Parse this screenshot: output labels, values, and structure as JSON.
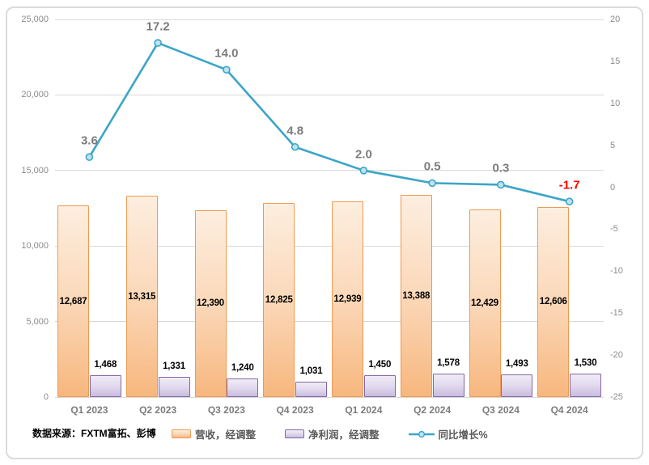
{
  "source_note": "数据来源：FXTM富拓、彭博",
  "colors": {
    "grid": "#D9D9D9",
    "axis_text": "#8C8C8C",
    "category_text": "#7C7C7C",
    "bar_label_text": "#000000",
    "line": "#3BA5C7",
    "line_marker_fill": "#BDE3F0",
    "line_label": "#7C7C7C",
    "line_label_negative": "#FF0000",
    "revenue_border": "#EE9A52",
    "revenue_fill_top": "#FDEEDF",
    "revenue_fill_mid": "#FBD8B9",
    "revenue_fill_bottom": "#F7B77E",
    "profit_border": "#8466A6",
    "profit_fill_top": "#F0ECF6",
    "profit_fill_mid": "#E2D9EE",
    "profit_fill_bottom": "#C9BCDF",
    "frame_border": "#DBDBDB"
  },
  "chart_data": {
    "type": "combo",
    "title": "",
    "categories": [
      "Q1 2023",
      "Q2 2023",
      "Q3 2023",
      "Q4 2023",
      "Q1 2024",
      "Q2 2024",
      "Q3 2024",
      "Q4 2024"
    ],
    "series": [
      {
        "name": "营收，经调整",
        "type": "bar",
        "axis": "left",
        "values": [
          12687,
          13315,
          12390,
          12825,
          12939,
          13388,
          12429,
          12606
        ],
        "labels": [
          "12,687",
          "13,315",
          "12,390",
          "12,825",
          "12,939",
          "13,388",
          "12,429",
          "12,606"
        ],
        "label_position": "center"
      },
      {
        "name": "净利润，经调整",
        "type": "bar",
        "axis": "left",
        "values": [
          1468,
          1331,
          1240,
          1031,
          1450,
          1578,
          1493,
          1530
        ],
        "labels": [
          "1,468",
          "1,331",
          "1,240",
          "1,031",
          "1,450",
          "1,578",
          "1,493",
          "1,530"
        ],
        "label_position": "outside-end"
      },
      {
        "name": "同比增长%",
        "type": "line",
        "axis": "right",
        "values": [
          3.6,
          17.2,
          14.0,
          4.8,
          2.0,
          0.5,
          0.3,
          -1.7
        ],
        "labels": [
          "3.6",
          "17.2",
          "14.0",
          "4.8",
          "2.0",
          "0.5",
          "0.3",
          "-1.7"
        ],
        "label_position": "above"
      }
    ],
    "left_axis": {
      "min": 0,
      "max": 25000,
      "step": 5000,
      "ticks": [
        25000,
        20000,
        15000,
        10000,
        5000,
        0
      ],
      "tick_labels": [
        "25,000",
        "20,000",
        "15,000",
        "10,000",
        "5,000",
        "0"
      ]
    },
    "right_axis": {
      "min": -25,
      "max": 20,
      "step": 5,
      "ticks": [
        20,
        15,
        10,
        5,
        0,
        -5,
        -10,
        -15,
        -20,
        -25
      ],
      "tick_labels": [
        "20",
        "15",
        "10",
        "5",
        "0",
        "-5",
        "-10",
        "-15",
        "-20",
        "-25"
      ]
    },
    "grid": "horizontal",
    "legend_position": "bottom"
  }
}
